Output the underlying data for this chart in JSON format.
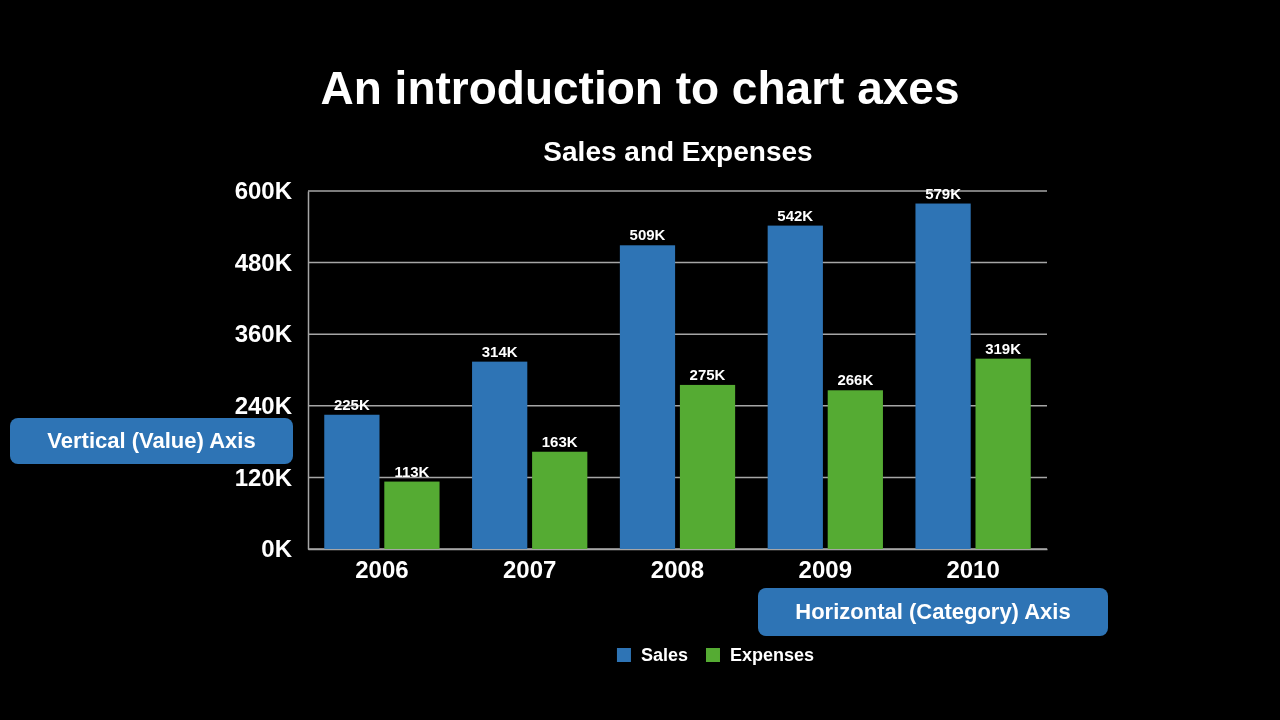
{
  "chart_data": {
    "type": "bar",
    "title": "An introduction to chart axes",
    "subtitle": "Sales and Expenses",
    "categories": [
      "2006",
      "2007",
      "2008",
      "2009",
      "2010"
    ],
    "series": [
      {
        "name": "Sales",
        "color": "#2e74b5",
        "values": [
          225000,
          314000,
          509000,
          542000,
          579000
        ],
        "value_labels": [
          "225K",
          "314K",
          "509K",
          "542K",
          "579K"
        ]
      },
      {
        "name": "Expenses",
        "color": "#55ab33",
        "values": [
          113000,
          163000,
          275000,
          266000,
          319000
        ],
        "value_labels": [
          "113K",
          "163K",
          "275K",
          "266K",
          "319K"
        ]
      }
    ],
    "ylim": [
      0,
      600000
    ],
    "yticks": [
      {
        "value": 0,
        "label": "0K"
      },
      {
        "value": 120000,
        "label": "120K"
      },
      {
        "value": 240000,
        "label": "240K"
      },
      {
        "value": 360000,
        "label": "360K"
      },
      {
        "value": 480000,
        "label": "480K"
      },
      {
        "value": 600000,
        "label": "600K"
      }
    ],
    "grid": "y",
    "legend": "bottom",
    "annotations": [
      "Vertical (Value) Axis",
      "Horizontal (Category) Axis"
    ]
  }
}
